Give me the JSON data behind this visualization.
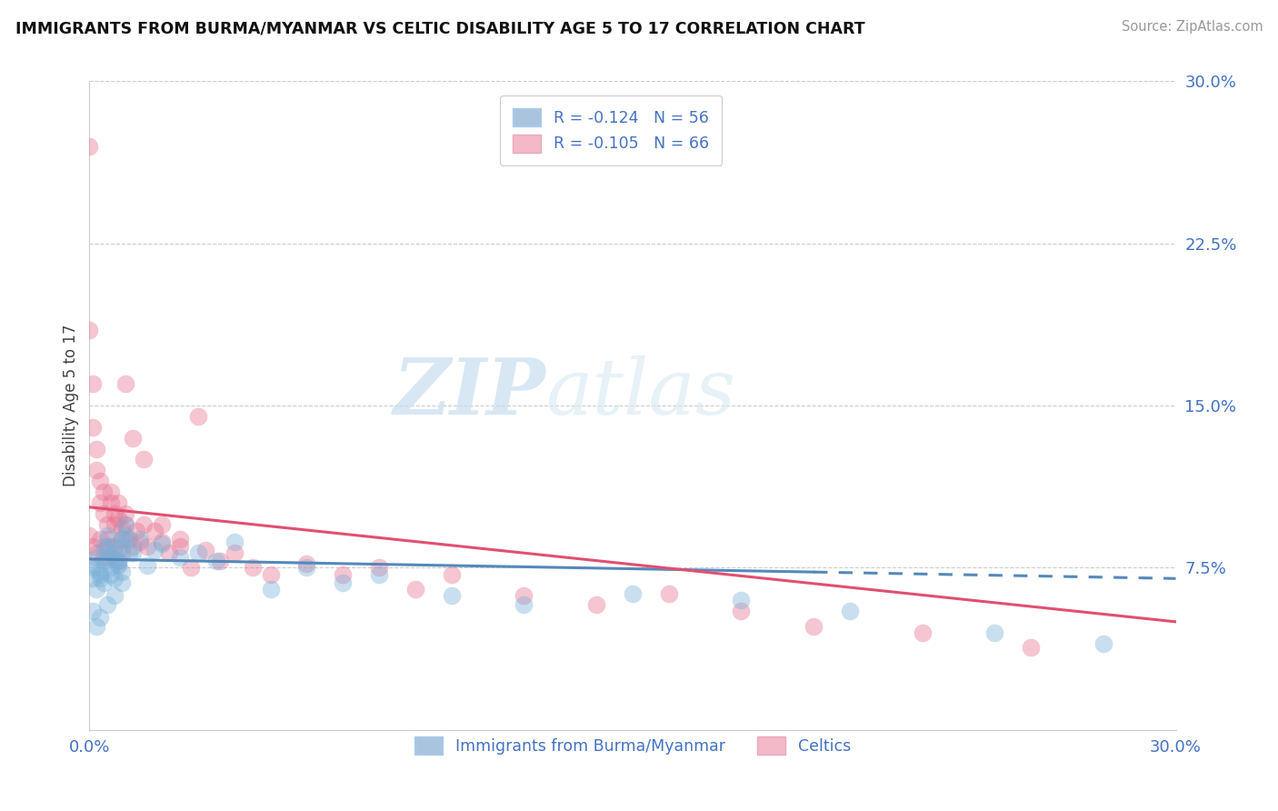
{
  "title": "IMMIGRANTS FROM BURMA/MYANMAR VS CELTIC DISABILITY AGE 5 TO 17 CORRELATION CHART",
  "source": "Source: ZipAtlas.com",
  "ylabel": "Disability Age 5 to 17",
  "xlim": [
    0.0,
    0.3
  ],
  "ylim": [
    0.0,
    0.3
  ],
  "legend1_label": "R = -0.124   N = 56",
  "legend2_label": "R = -0.105   N = 66",
  "legend_bottom_label1": "Immigrants from Burma/Myanmar",
  "legend_bottom_label2": "Celtics",
  "blue_color": "#aac4e0",
  "pink_color": "#f4b8c8",
  "blue_scatter_color": "#7ab0d8",
  "pink_scatter_color": "#e87090",
  "trend_blue_color": "#5588bb",
  "trend_pink_color": "#e05070",
  "watermark_zip": "ZIP",
  "watermark_atlas": "atlas",
  "blue_x": [
    0.001,
    0.002,
    0.003,
    0.004,
    0.005,
    0.006,
    0.007,
    0.008,
    0.009,
    0.01,
    0.002,
    0.003,
    0.004,
    0.005,
    0.006,
    0.007,
    0.008,
    0.009,
    0.01,
    0.011,
    0.001,
    0.002,
    0.003,
    0.004,
    0.005,
    0.006,
    0.007,
    0.008,
    0.009,
    0.01,
    0.012,
    0.014,
    0.016,
    0.018,
    0.02,
    0.025,
    0.03,
    0.035,
    0.04,
    0.05,
    0.06,
    0.07,
    0.08,
    0.1,
    0.12,
    0.15,
    0.18,
    0.21,
    0.25,
    0.28,
    0.001,
    0.002,
    0.003,
    0.005,
    0.007,
    0.009
  ],
  "blue_y": [
    0.075,
    0.08,
    0.07,
    0.085,
    0.09,
    0.075,
    0.082,
    0.078,
    0.088,
    0.095,
    0.065,
    0.072,
    0.068,
    0.08,
    0.085,
    0.07,
    0.076,
    0.073,
    0.088,
    0.082,
    0.07,
    0.075,
    0.073,
    0.078,
    0.083,
    0.072,
    0.079,
    0.077,
    0.085,
    0.09,
    0.082,
    0.088,
    0.076,
    0.083,
    0.086,
    0.08,
    0.082,
    0.078,
    0.087,
    0.065,
    0.075,
    0.068,
    0.072,
    0.062,
    0.058,
    0.063,
    0.06,
    0.055,
    0.045,
    0.04,
    0.055,
    0.048,
    0.052,
    0.058,
    0.062,
    0.068
  ],
  "pink_x": [
    0.0,
    0.0,
    0.001,
    0.001,
    0.002,
    0.002,
    0.003,
    0.003,
    0.004,
    0.004,
    0.005,
    0.005,
    0.006,
    0.006,
    0.007,
    0.007,
    0.008,
    0.008,
    0.009,
    0.009,
    0.01,
    0.01,
    0.011,
    0.012,
    0.013,
    0.014,
    0.015,
    0.016,
    0.018,
    0.02,
    0.022,
    0.025,
    0.028,
    0.032,
    0.036,
    0.04,
    0.045,
    0.05,
    0.06,
    0.07,
    0.08,
    0.09,
    0.1,
    0.12,
    0.14,
    0.16,
    0.18,
    0.2,
    0.23,
    0.26,
    0.0,
    0.001,
    0.002,
    0.003,
    0.004,
    0.005,
    0.006,
    0.007,
    0.008,
    0.009,
    0.01,
    0.012,
    0.015,
    0.02,
    0.025,
    0.03
  ],
  "pink_y": [
    0.27,
    0.185,
    0.16,
    0.14,
    0.13,
    0.12,
    0.115,
    0.105,
    0.11,
    0.1,
    0.095,
    0.088,
    0.11,
    0.105,
    0.1,
    0.095,
    0.105,
    0.098,
    0.093,
    0.088,
    0.1,
    0.095,
    0.088,
    0.085,
    0.092,
    0.087,
    0.095,
    0.085,
    0.092,
    0.087,
    0.082,
    0.088,
    0.075,
    0.083,
    0.078,
    0.082,
    0.075,
    0.072,
    0.077,
    0.072,
    0.075,
    0.065,
    0.072,
    0.062,
    0.058,
    0.063,
    0.055,
    0.048,
    0.045,
    0.038,
    0.09,
    0.085,
    0.082,
    0.088,
    0.08,
    0.085,
    0.08,
    0.085,
    0.078,
    0.082,
    0.16,
    0.135,
    0.125,
    0.095,
    0.085,
    0.145
  ]
}
